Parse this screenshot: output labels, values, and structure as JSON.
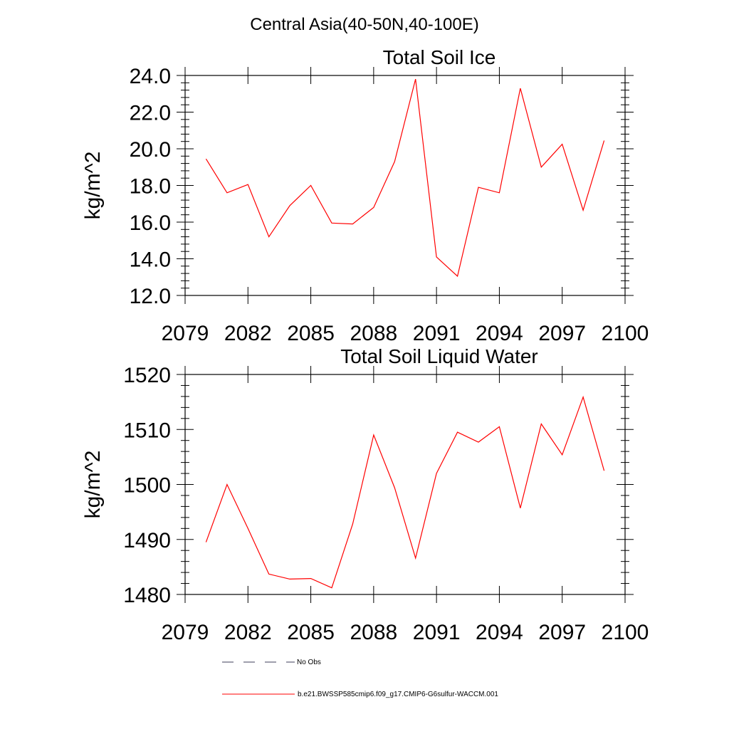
{
  "figure": {
    "suptitle": "Central Asia(40-50N,40-100E)"
  },
  "colors": {
    "series": "#ff0000",
    "obs": "#3c3c5a",
    "axis": "#000000"
  },
  "chart_data": [
    {
      "type": "line",
      "title": "Total Soil Ice",
      "xlabel": "",
      "ylabel": "kg/m^2",
      "xlim": [
        2079,
        2100
      ],
      "ylim": [
        12,
        24
      ],
      "x_ticks": [
        2079,
        2082,
        2085,
        2088,
        2091,
        2094,
        2097,
        2100
      ],
      "x_tick_labels": [
        "2079",
        "2082",
        "2085",
        "2088",
        "2091",
        "2094",
        "2097",
        "2100"
      ],
      "y_ticks": [
        12,
        14,
        16,
        18,
        20,
        22,
        24
      ],
      "y_tick_labels": [
        "12.0",
        "14.0",
        "16.0",
        "18.0",
        "20.0",
        "22.0",
        "24.0"
      ],
      "grid": false,
      "series": [
        {
          "name": "b.e21.BWSSP585cmip6.f09_g17.CMIP6-G6sulfur-WACCM.001",
          "x": [
            2080,
            2081,
            2082,
            2083,
            2084,
            2085,
            2086,
            2087,
            2088,
            2089,
            2090,
            2091,
            2092,
            2093,
            2094,
            2095,
            2096,
            2097,
            2098,
            2099
          ],
          "y": [
            19.45,
            17.6,
            18.05,
            15.2,
            16.9,
            18.0,
            15.95,
            15.9,
            16.8,
            19.3,
            23.8,
            14.1,
            13.05,
            17.9,
            17.6,
            23.3,
            19.0,
            20.25,
            16.65,
            20.45
          ]
        }
      ]
    },
    {
      "type": "line",
      "title": "Total Soil Liquid Water",
      "xlabel": "",
      "ylabel": "kg/m^2",
      "xlim": [
        2079,
        2100
      ],
      "ylim": [
        1480,
        1520
      ],
      "x_ticks": [
        2079,
        2082,
        2085,
        2088,
        2091,
        2094,
        2097,
        2100
      ],
      "x_tick_labels": [
        "2079",
        "2082",
        "2085",
        "2088",
        "2091",
        "2094",
        "2097",
        "2100"
      ],
      "y_ticks": [
        1480,
        1490,
        1500,
        1510,
        1520
      ],
      "y_tick_labels": [
        "1480",
        "1490",
        "1500",
        "1510",
        "1520"
      ],
      "grid": false,
      "series": [
        {
          "name": "b.e21.BWSSP585cmip6.f09_g17.CMIP6-G6sulfur-WACCM.001",
          "x": [
            2080,
            2081,
            2082,
            2083,
            2084,
            2085,
            2086,
            2087,
            2088,
            2089,
            2090,
            2091,
            2092,
            2093,
            2094,
            2095,
            2096,
            2097,
            2098,
            2099
          ],
          "y": [
            1489.5,
            1500.0,
            1492.0,
            1483.7,
            1482.8,
            1482.9,
            1481.2,
            1492.8,
            1509.0,
            1499.4,
            1486.6,
            1502.0,
            1509.5,
            1507.7,
            1510.5,
            1495.7,
            1511.0,
            1505.4,
            1515.9,
            1502.5
          ]
        }
      ]
    }
  ],
  "legend": {
    "placement": "bottom",
    "items": [
      {
        "label": "No Obs",
        "style": "dashed",
        "color": "#3c3c5a"
      },
      {
        "label": "b.e21.BWSSP585cmip6.f09_g17.CMIP6-G6sulfur-WACCM.001",
        "style": "solid",
        "color": "#ff0000"
      }
    ]
  }
}
